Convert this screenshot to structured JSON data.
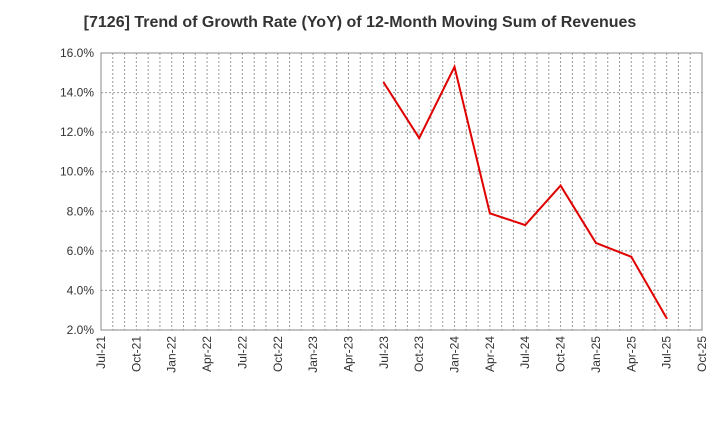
{
  "chart_data": {
    "type": "line",
    "title": "[7126]  Trend of Growth Rate (YoY) of 12-Month Moving Sum of Revenues",
    "xlabel": "",
    "ylabel": "",
    "ylim": [
      2.0,
      16.0
    ],
    "yticks": [
      "2.0%",
      "4.0%",
      "6.0%",
      "8.0%",
      "10.0%",
      "12.0%",
      "14.0%",
      "16.0%"
    ],
    "ytick_values": [
      2,
      4,
      6,
      8,
      10,
      12,
      14,
      16
    ],
    "x_tick_labels": [
      "Jul-21",
      "Oct-21",
      "Jan-22",
      "Apr-22",
      "Jul-22",
      "Oct-22",
      "Jan-23",
      "Apr-23",
      "Jul-23",
      "Oct-23",
      "Jan-24",
      "Apr-24",
      "Jul-24",
      "Oct-24",
      "Jan-25",
      "Apr-25",
      "Jul-25",
      "Oct-25"
    ],
    "x_range_months": [
      0,
      51
    ],
    "grid": true,
    "series": [
      {
        "name": "Growth Rate (YoY)",
        "color": "#e00000",
        "points": [
          {
            "label": "Jul-23",
            "month_index": 24,
            "value": 14.5
          },
          {
            "label": "Oct-23",
            "month_index": 27,
            "value": 11.7
          },
          {
            "label": "Jan-24",
            "month_index": 30,
            "value": 15.3
          },
          {
            "label": "Apr-24",
            "month_index": 33,
            "value": 7.9
          },
          {
            "label": "Jul-24",
            "month_index": 36,
            "value": 7.3
          },
          {
            "label": "Oct-24",
            "month_index": 39,
            "value": 9.3
          },
          {
            "label": "Jan-25",
            "month_index": 42,
            "value": 6.4
          },
          {
            "label": "Apr-25",
            "month_index": 45,
            "value": 5.7
          },
          {
            "label": "Jul-25",
            "month_index": 48,
            "value": 2.6
          }
        ]
      }
    ]
  }
}
